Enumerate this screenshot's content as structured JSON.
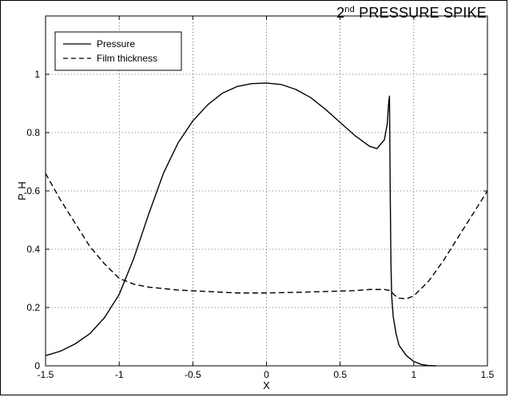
{
  "annotation": {
    "main": "2",
    "sup": "nd",
    "rest": " PRESSURE SPIKE"
  },
  "chart_data": {
    "type": "line",
    "xlabel": "X",
    "ylabel": "P, H",
    "xlim": [
      -1.5,
      1.5
    ],
    "ylim": [
      0,
      1.2
    ],
    "xticks": [
      "-1.5",
      "-1",
      "-0.5",
      "0",
      "0.5",
      "1",
      "1.5"
    ],
    "yticks": [
      "0",
      "0.2",
      "0.4",
      "0.6",
      "0.8",
      "1"
    ],
    "xtick_values": [
      -1.5,
      -1,
      -0.5,
      0,
      0.5,
      1,
      1.5
    ],
    "ytick_values": [
      0,
      0.2,
      0.4,
      0.6,
      0.8,
      1.0
    ],
    "grid": true,
    "legend_placement": "top-left",
    "series": [
      {
        "name": "Pressure",
        "style": "solid",
        "color": "#000000",
        "x": [
          -1.5,
          -1.4,
          -1.3,
          -1.2,
          -1.1,
          -1.0,
          -0.9,
          -0.8,
          -0.7,
          -0.6,
          -0.5,
          -0.4,
          -0.3,
          -0.2,
          -0.1,
          0.0,
          0.1,
          0.2,
          0.3,
          0.4,
          0.5,
          0.6,
          0.7,
          0.75,
          0.8,
          0.82,
          0.83,
          0.835,
          0.84,
          0.845,
          0.85,
          0.86,
          0.88,
          0.9,
          0.95,
          1.0,
          1.05,
          1.1,
          1.15
        ],
        "y": [
          0.035,
          0.05,
          0.075,
          0.11,
          0.165,
          0.245,
          0.37,
          0.52,
          0.66,
          0.765,
          0.84,
          0.895,
          0.935,
          0.958,
          0.968,
          0.97,
          0.965,
          0.948,
          0.92,
          0.88,
          0.835,
          0.79,
          0.753,
          0.745,
          0.775,
          0.83,
          0.905,
          0.925,
          0.6,
          0.35,
          0.24,
          0.17,
          0.11,
          0.07,
          0.035,
          0.015,
          0.005,
          0.001,
          0.0
        ]
      },
      {
        "name": "Film thickness",
        "style": "dashed",
        "color": "#000000",
        "x": [
          -1.5,
          -1.4,
          -1.3,
          -1.2,
          -1.1,
          -1.0,
          -0.9,
          -0.8,
          -0.6,
          -0.4,
          -0.2,
          0.0,
          0.2,
          0.4,
          0.6,
          0.7,
          0.8,
          0.84,
          0.87,
          0.9,
          0.95,
          1.0,
          1.1,
          1.2,
          1.3,
          1.4,
          1.5
        ],
        "y": [
          0.66,
          0.57,
          0.49,
          0.41,
          0.35,
          0.3,
          0.28,
          0.27,
          0.26,
          0.255,
          0.25,
          0.25,
          0.252,
          0.255,
          0.258,
          0.262,
          0.262,
          0.258,
          0.242,
          0.232,
          0.23,
          0.24,
          0.29,
          0.36,
          0.44,
          0.52,
          0.6
        ]
      }
    ]
  }
}
